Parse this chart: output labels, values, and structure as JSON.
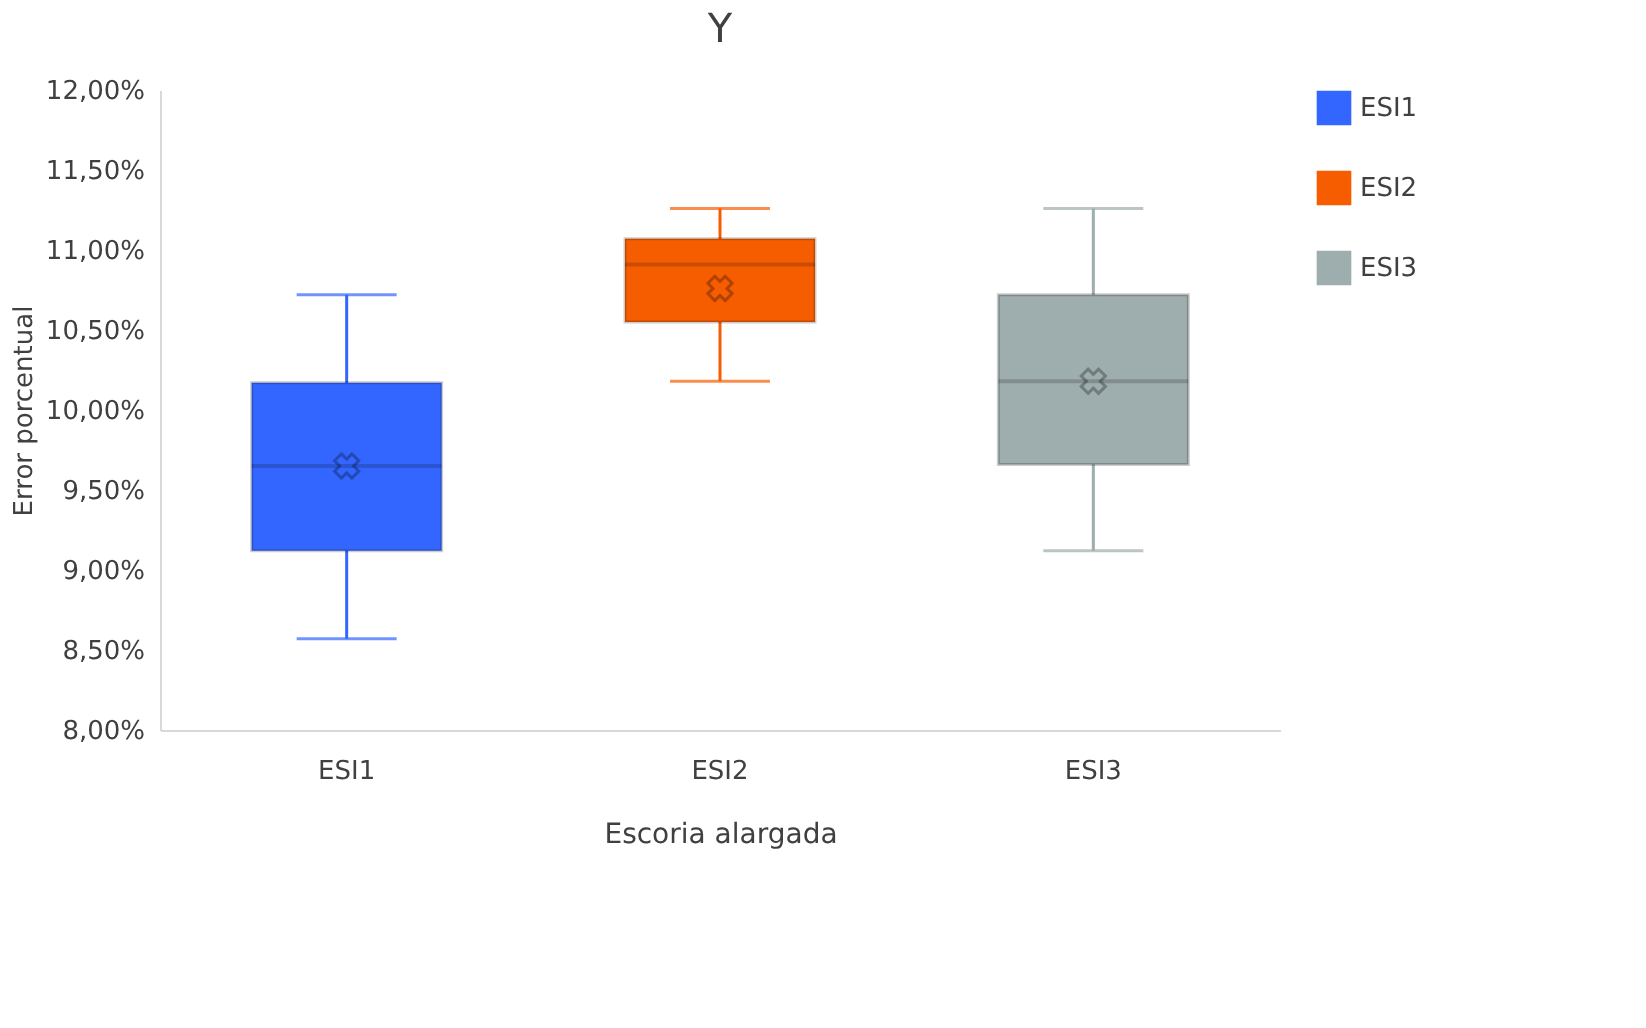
{
  "chart_data": {
    "type": "box",
    "title": "Y",
    "xlabel": "Escoria alargada",
    "ylabel": "Error porcentual",
    "categories": [
      "ESI1",
      "ESI2",
      "ESI3"
    ],
    "series": [
      {
        "name": "ESI1",
        "color": "#3366ff",
        "boxes": [
          {
            "low": 8.57,
            "q1": 9.12,
            "median": 9.65,
            "q3": 10.17,
            "high": 10.72,
            "mean": 9.65
          },
          null,
          null
        ]
      },
      {
        "name": "ESI2",
        "color": "#f65d00",
        "boxes": [
          null,
          {
            "low": 10.18,
            "q1": 10.55,
            "median": 10.91,
            "q3": 11.07,
            "high": 11.26,
            "mean": 10.76
          },
          null
        ]
      },
      {
        "name": "ESI3",
        "color": "#9eadad",
        "boxes": [
          null,
          null,
          {
            "low": 9.12,
            "q1": 9.66,
            "median": 10.18,
            "q3": 10.72,
            "high": 11.26,
            "mean": 10.18
          }
        ]
      }
    ],
    "ylim": [
      8,
      12
    ],
    "yticks": [
      {
        "value": 8,
        "label": "8,00%"
      },
      {
        "value": 8.5,
        "label": "8,50%"
      },
      {
        "value": 9,
        "label": "9,00%"
      },
      {
        "value": 9.5,
        "label": "9,50%"
      },
      {
        "value": 10,
        "label": "10,00%"
      },
      {
        "value": 10.5,
        "label": "10,50%"
      },
      {
        "value": 11,
        "label": "11,00%"
      },
      {
        "value": 11.5,
        "label": "11,50%"
      },
      {
        "value": 12,
        "label": "12,00%"
      }
    ],
    "grid": false,
    "legend": "right",
    "marker": "cross"
  }
}
